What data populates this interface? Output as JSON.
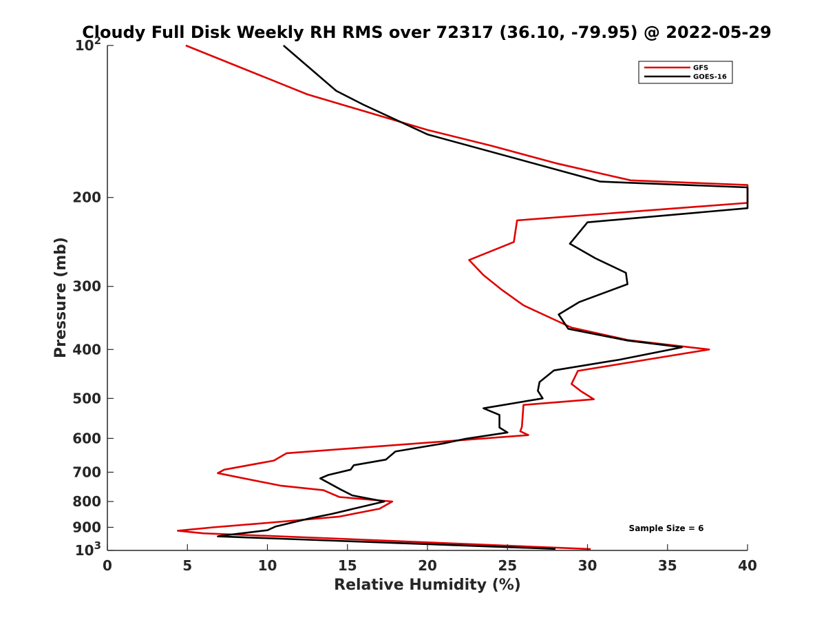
{
  "chart_data": {
    "type": "line",
    "title": "Cloudy Full Disk Weekly RH RMS over 72317 (36.10, -79.95) @ 2022-05-29",
    "xlabel": "Relative Humidity (%)",
    "ylabel": "Pressure (mb)",
    "xlim": [
      0,
      40
    ],
    "ylim": [
      100,
      1000
    ],
    "yscale": "log",
    "y_reversed": true,
    "grid": false,
    "legend_position": "top-right",
    "x_ticks": [
      0,
      5,
      10,
      15,
      20,
      25,
      30,
      35,
      40
    ],
    "x_tick_labels": [
      "0",
      "5",
      "10",
      "15",
      "20",
      "25",
      "30",
      "35",
      "40"
    ],
    "y_ticks": [
      100,
      200,
      300,
      400,
      500,
      600,
      700,
      800,
      900,
      1000
    ],
    "y_tick_labels": [
      {
        "base": "10",
        "sup": "2"
      },
      {
        "base": "200",
        "sup": ""
      },
      {
        "base": "300",
        "sup": ""
      },
      {
        "base": "400",
        "sup": ""
      },
      {
        "base": "500",
        "sup": ""
      },
      {
        "base": "600",
        "sup": ""
      },
      {
        "base": "700",
        "sup": ""
      },
      {
        "base": "800",
        "sup": ""
      },
      {
        "base": "900",
        "sup": ""
      },
      {
        "base": "10",
        "sup": "3"
      }
    ],
    "annotation": "Sample Size = 6",
    "series": [
      {
        "name": "GFS",
        "color": "#e00000",
        "points": [
          [
            4.9,
            100
          ],
          [
            12.5,
            125
          ],
          [
            20,
            147
          ],
          [
            24,
            158
          ],
          [
            28,
            171
          ],
          [
            32.7,
            185
          ],
          [
            40,
            189
          ],
          [
            40,
            205
          ],
          [
            25.6,
            222
          ],
          [
            25.4,
            245
          ],
          [
            22.6,
            266
          ],
          [
            23.5,
            285
          ],
          [
            24.6,
            304
          ],
          [
            26,
            327
          ],
          [
            29,
            362
          ],
          [
            32.5,
            383
          ],
          [
            37.6,
            400
          ],
          [
            29.4,
            441
          ],
          [
            29,
            468
          ],
          [
            29.6,
            484
          ],
          [
            30.4,
            502
          ],
          [
            26,
            515
          ],
          [
            25.9,
            569
          ],
          [
            25.8,
            581
          ],
          [
            26.3,
            591
          ],
          [
            11.2,
            642
          ],
          [
            10.4,
            664
          ],
          [
            7.3,
            692
          ],
          [
            6.9,
            703
          ],
          [
            10.8,
            744
          ],
          [
            13.5,
            760
          ],
          [
            14.5,
            784
          ],
          [
            17.8,
            800
          ],
          [
            17,
            827
          ],
          [
            14.5,
            857
          ],
          [
            10,
            882
          ],
          [
            6.6,
            900
          ],
          [
            4.4,
            914
          ],
          [
            6,
            925
          ],
          [
            14.5,
            948
          ],
          [
            30.2,
            994
          ]
        ]
      },
      {
        "name": "GOES-16",
        "color": "#000000",
        "points": [
          [
            11,
            100
          ],
          [
            14.3,
            123
          ],
          [
            16,
            131
          ],
          [
            20,
            150
          ],
          [
            30.8,
            186
          ],
          [
            40,
            191
          ],
          [
            40,
            210
          ],
          [
            30,
            224
          ],
          [
            28.9,
            247
          ],
          [
            30.5,
            264
          ],
          [
            32.4,
            282
          ],
          [
            32.5,
            297
          ],
          [
            29.5,
            322
          ],
          [
            28.2,
            341
          ],
          [
            28.8,
            364
          ],
          [
            32.5,
            384
          ],
          [
            35.9,
            396
          ],
          [
            32,
            419
          ],
          [
            27.9,
            440
          ],
          [
            27,
            464
          ],
          [
            26.9,
            483
          ],
          [
            27.2,
            500
          ],
          [
            23.5,
            523
          ],
          [
            24.5,
            539
          ],
          [
            24.5,
            571
          ],
          [
            25,
            584
          ],
          [
            22.4,
            601
          ],
          [
            21,
            614
          ],
          [
            18,
            637
          ],
          [
            17.4,
            661
          ],
          [
            15.4,
            678
          ],
          [
            15.2,
            692
          ],
          [
            13.8,
            709
          ],
          [
            13.3,
            720
          ],
          [
            14.6,
            758
          ],
          [
            15.3,
            778
          ],
          [
            17.3,
            800
          ],
          [
            14,
            847
          ],
          [
            12.7,
            863
          ],
          [
            10.5,
            897
          ],
          [
            10,
            912
          ],
          [
            7.4,
            933
          ],
          [
            6.9,
            938
          ],
          [
            28,
            993
          ]
        ]
      }
    ]
  }
}
